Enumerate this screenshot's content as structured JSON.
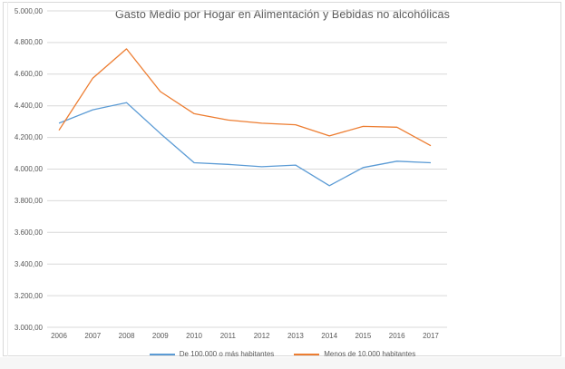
{
  "window": {
    "background_color": "#FFFFFF",
    "frame_border_color": "#D9D9D9"
  },
  "chart_data": {
    "type": "line",
    "title": "Gasto Medio por Hogar en Alimentación y Bebidas no alcohólicas",
    "title_color": "#595959",
    "categories": [
      "2006",
      "2007",
      "2008",
      "2009",
      "2010",
      "2011",
      "2012",
      "2013",
      "2014",
      "2015",
      "2016",
      "2017"
    ],
    "series": [
      {
        "name": "De 100.000 o más habitantes",
        "color": "#5B9BD5",
        "values": [
          4290,
          4375,
          4420,
          4225,
          4040,
          4030,
          4015,
          4025,
          3895,
          4010,
          4050,
          4040
        ]
      },
      {
        "name": "Menos de 10.000 habitantes",
        "color": "#ED7D31",
        "values": [
          4245,
          4575,
          4760,
          4490,
          4350,
          4310,
          4290,
          4280,
          4210,
          4270,
          4265,
          4148
        ]
      }
    ],
    "ylim": [
      3000,
      5000
    ],
    "ytick_step": 200,
    "ytick_labels": [
      "5.000,00",
      "4.800,00",
      "4.600,00",
      "4.400,00",
      "4.200,00",
      "4.000,00",
      "3.800,00",
      "3.600,00",
      "3.400,00",
      "3.200,00",
      "3.000,00"
    ],
    "xlabel": "",
    "ylabel": "",
    "grid": true,
    "gridline_color": "#D9D9D9",
    "axis_line_color": "#D9D9D9",
    "axis_label_color": "#595959",
    "legend_position": "bottom"
  }
}
